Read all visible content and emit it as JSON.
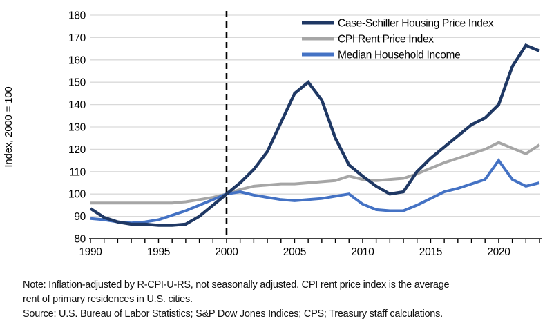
{
  "chart_data": {
    "type": "line",
    "title": "",
    "xlabel": "",
    "ylabel": "Index, 2000 = 100",
    "ylim": [
      80,
      180
    ],
    "ytick_step": 10,
    "grid": "horizontal",
    "legend_position": "top-right-inside",
    "reference_line_x": 2000,
    "x": [
      1990,
      1991,
      1992,
      1993,
      1994,
      1995,
      1996,
      1997,
      1998,
      1999,
      2000,
      2001,
      2002,
      2003,
      2004,
      2005,
      2006,
      2007,
      2008,
      2009,
      2010,
      2011,
      2012,
      2013,
      2014,
      2015,
      2016,
      2017,
      2018,
      2019,
      2020,
      2021,
      2022,
      2023
    ],
    "xtick_labels": [
      "1990",
      "1995",
      "2000",
      "2005",
      "2010",
      "2015",
      "2020"
    ],
    "series": [
      {
        "name": "Case-Schiller Housing Price Index",
        "color": "#1f3864",
        "values": [
          93.5,
          89.5,
          87.5,
          86.5,
          86.5,
          86,
          86,
          86.5,
          90,
          95,
          100,
          105,
          111,
          119,
          132,
          145,
          150,
          142,
          125,
          113,
          108,
          103.5,
          100,
          101,
          110,
          116,
          121,
          126,
          131,
          134,
          140,
          157,
          166.5,
          164
        ]
      },
      {
        "name": "CPI Rent Price Index",
        "color": "#a6a6a6",
        "values": [
          96,
          96,
          96,
          96,
          96,
          96,
          96,
          96.5,
          97.5,
          98.5,
          100,
          102,
          103.5,
          104,
          104.5,
          104.5,
          105,
          105.5,
          106,
          108,
          106.5,
          106,
          106.5,
          107,
          109,
          111.5,
          114,
          116,
          118,
          120,
          123,
          120.5,
          118,
          122
        ]
      },
      {
        "name": "Median Household Income",
        "color": "#4472c4",
        "values": [
          89,
          88.5,
          87.5,
          87,
          87.5,
          88.5,
          90.5,
          92.5,
          95,
          97.5,
          100,
          101,
          99.5,
          98.5,
          97.5,
          97,
          97.5,
          98,
          99,
          100,
          95.5,
          93,
          92.5,
          92.5,
          95,
          98,
          101,
          102.5,
          104.5,
          106.5,
          115,
          106.5,
          103.5,
          105
        ]
      }
    ]
  },
  "footnote": {
    "note_line1": "Note: Inflation-adjusted by R-CPI-U-RS, not seasonally adjusted. CPI rent price index is the average",
    "note_line2": "rent of primary residences in U.S. cities.",
    "source": "Source: U.S. Bureau of Labor Statistics; S&P Dow Jones Indices; CPS; Treasury staff calculations."
  },
  "colors": {
    "gridline": "#d9d9d9",
    "axis": "#000000",
    "reference_line": "#000000",
    "background": "#ffffff"
  }
}
